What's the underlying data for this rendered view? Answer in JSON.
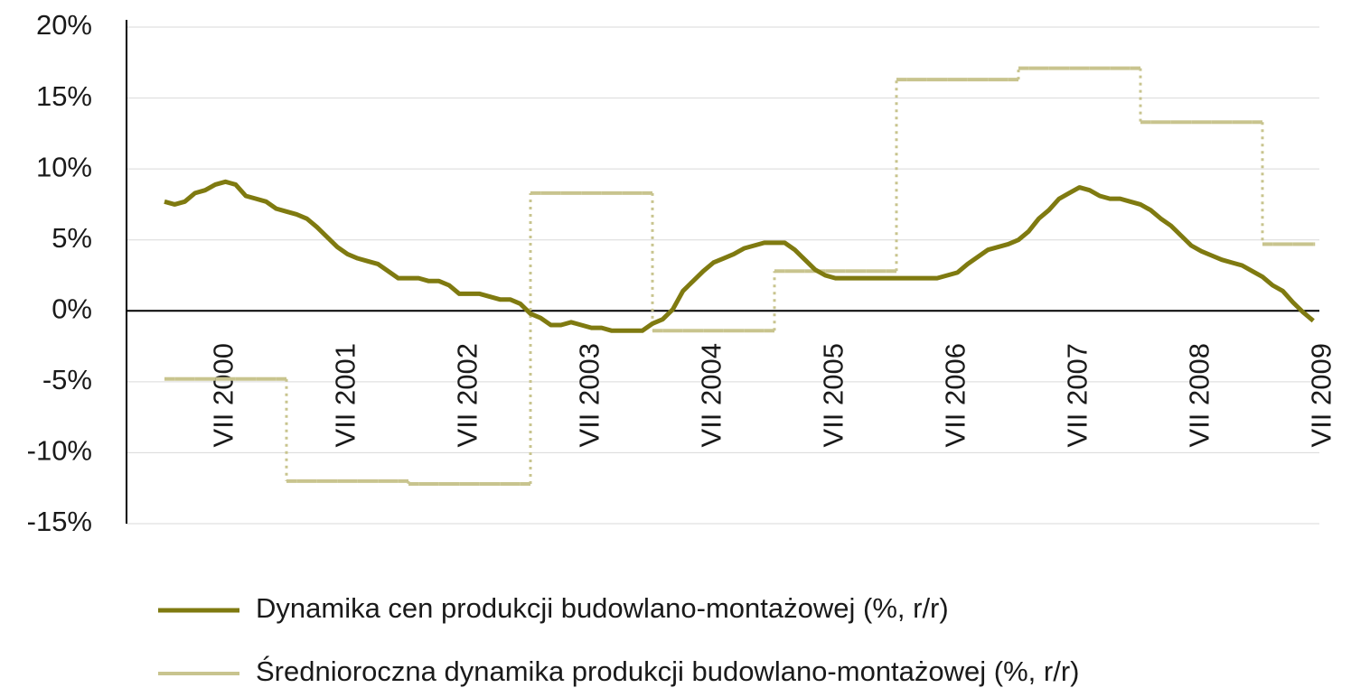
{
  "chart_data": {
    "type": "line",
    "categories": [
      null,
      null,
      null,
      null,
      null,
      null,
      "VII 2000",
      null,
      null,
      null,
      null,
      null,
      null,
      null,
      null,
      null,
      null,
      null,
      "VII 2001",
      null,
      null,
      null,
      null,
      null,
      null,
      null,
      null,
      null,
      null,
      null,
      "VII 2002",
      null,
      null,
      null,
      null,
      null,
      null,
      null,
      null,
      null,
      null,
      null,
      "VII 2003",
      null,
      null,
      null,
      null,
      null,
      null,
      null,
      null,
      null,
      null,
      null,
      "VII 2004",
      null,
      null,
      null,
      null,
      null,
      null,
      null,
      null,
      null,
      null,
      null,
      "VII 2005",
      null,
      null,
      null,
      null,
      null,
      null,
      null,
      null,
      null,
      null,
      null,
      "VII 2006",
      null,
      null,
      null,
      null,
      null,
      null,
      null,
      null,
      null,
      null,
      null,
      "VII 2007",
      null,
      null,
      null,
      null,
      null,
      null,
      null,
      null,
      null,
      null,
      null,
      "VII 2008",
      null,
      null,
      null,
      null,
      null,
      null,
      null,
      null,
      null,
      null,
      null,
      "VII 2009"
    ],
    "series": [
      {
        "name": "Dynamika cen produkcji budowlano-montażowej (%, r/r)",
        "color": "#7f7a10",
        "style": "line",
        "values": [
          7.7,
          7.5,
          7.7,
          8.3,
          8.5,
          8.9,
          9.1,
          8.9,
          8.1,
          7.9,
          7.7,
          7.2,
          7.0,
          6.8,
          6.5,
          5.9,
          5.2,
          4.5,
          4.0,
          3.7,
          3.5,
          3.3,
          2.8,
          2.3,
          2.3,
          2.3,
          2.1,
          2.1,
          1.8,
          1.2,
          1.2,
          1.2,
          1.0,
          0.8,
          0.8,
          0.5,
          -0.2,
          -0.5,
          -1.0,
          -1.0,
          -0.8,
          -1.0,
          -1.2,
          -1.2,
          -1.4,
          -1.4,
          -1.4,
          -1.4,
          -0.9,
          -0.6,
          0.1,
          1.4,
          2.1,
          2.8,
          3.4,
          3.7,
          4.0,
          4.4,
          4.6,
          4.8,
          4.8,
          4.8,
          4.3,
          3.6,
          2.9,
          2.5,
          2.3,
          2.3,
          2.3,
          2.3,
          2.3,
          2.3,
          2.3,
          2.3,
          2.3,
          2.3,
          2.3,
          2.5,
          2.7,
          3.3,
          3.8,
          4.3,
          4.5,
          4.7,
          5.0,
          5.6,
          6.5,
          7.1,
          7.9,
          8.3,
          8.7,
          8.5,
          8.1,
          7.9,
          7.9,
          7.7,
          7.5,
          7.1,
          6.5,
          6.0,
          5.3,
          4.6,
          4.2,
          3.9,
          3.6,
          3.4,
          3.2,
          2.8,
          2.4,
          1.8,
          1.4,
          0.6,
          -0.1,
          -0.7,
          null
        ]
      },
      {
        "name": "Średnioroczna dynamika produkcji budowlano-montażowej (%, r/r)",
        "color": "#c8c48e",
        "style": "step",
        "values": [
          -4.8,
          -4.8,
          -4.8,
          -4.8,
          -4.8,
          -4.8,
          -4.8,
          -4.8,
          -4.8,
          -4.8,
          -4.8,
          -4.8,
          -12.0,
          -12.0,
          -12.0,
          -12.0,
          -12.0,
          -12.0,
          -12.0,
          -12.0,
          -12.0,
          -12.0,
          -12.0,
          -12.0,
          -12.2,
          -12.2,
          -12.2,
          -12.2,
          -12.2,
          -12.2,
          -12.2,
          -12.2,
          -12.2,
          -12.2,
          -12.2,
          -12.2,
          8.3,
          8.3,
          8.3,
          8.3,
          8.3,
          8.3,
          8.3,
          8.3,
          8.3,
          8.3,
          8.3,
          8.3,
          -1.4,
          -1.4,
          -1.4,
          -1.4,
          -1.4,
          -1.4,
          -1.4,
          -1.4,
          -1.4,
          -1.4,
          -1.4,
          -1.4,
          2.8,
          2.8,
          2.8,
          2.8,
          2.8,
          2.8,
          2.8,
          2.8,
          2.8,
          2.8,
          2.8,
          2.8,
          16.3,
          16.3,
          16.3,
          16.3,
          16.3,
          16.3,
          16.3,
          16.3,
          16.3,
          16.3,
          16.3,
          16.3,
          17.1,
          17.1,
          17.1,
          17.1,
          17.1,
          17.1,
          17.1,
          17.1,
          17.1,
          17.1,
          17.1,
          17.1,
          13.3,
          13.3,
          13.3,
          13.3,
          13.3,
          13.3,
          13.3,
          13.3,
          13.3,
          13.3,
          13.3,
          13.3,
          4.7,
          4.7,
          4.7,
          4.7,
          4.7,
          4.7,
          null
        ]
      }
    ],
    "ylim": [
      -15,
      20
    ],
    "yticks": [
      {
        "value": -15,
        "label": "-15%"
      },
      {
        "value": -10,
        "label": "-10%"
      },
      {
        "value": -5,
        "label": "-5%"
      },
      {
        "value": 0,
        "label": "0%"
      },
      {
        "value": 5,
        "label": "5%"
      },
      {
        "value": 10,
        "label": "10%"
      },
      {
        "value": 15,
        "label": "15%"
      },
      {
        "value": 20,
        "label": "20%"
      }
    ],
    "grid": true,
    "legend": "bottom"
  }
}
